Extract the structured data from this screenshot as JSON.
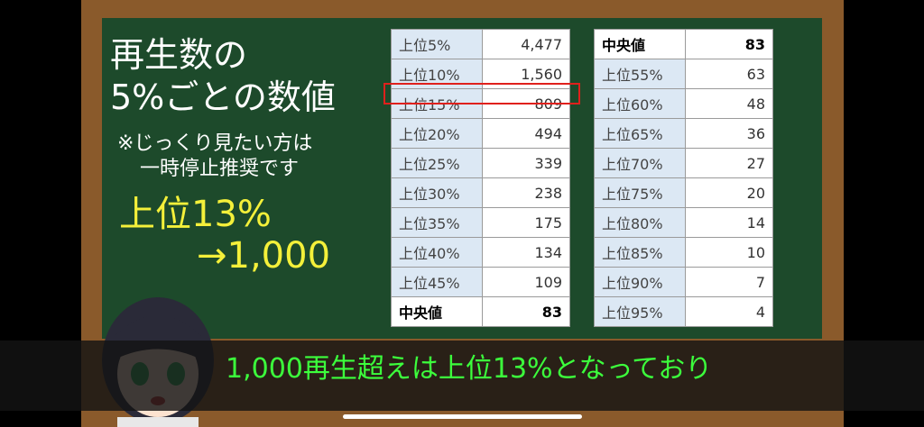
{
  "heading": [
    "再生数の",
    "5%ごとの数値"
  ],
  "note": [
    "※じっくり見たい方は",
    "一時停止推奨です"
  ],
  "highlight": [
    "上位13%",
    "→1,000"
  ],
  "table_left": {
    "rows": [
      [
        "上位5%",
        "4,477"
      ],
      [
        "上位10%",
        "1,560"
      ],
      [
        "上位15%",
        "809"
      ],
      [
        "上位20%",
        "494"
      ],
      [
        "上位25%",
        "339"
      ],
      [
        "上位30%",
        "238"
      ],
      [
        "上位35%",
        "175"
      ],
      [
        "上位40%",
        "134"
      ],
      [
        "上位45%",
        "109"
      ],
      [
        "中央値",
        "83"
      ]
    ]
  },
  "table_right": {
    "rows": [
      [
        "中央値",
        "83"
      ],
      [
        "上位55%",
        "63"
      ],
      [
        "上位60%",
        "48"
      ],
      [
        "上位65%",
        "36"
      ],
      [
        "上位70%",
        "27"
      ],
      [
        "上位75%",
        "20"
      ],
      [
        "上位80%",
        "14"
      ],
      [
        "上位85%",
        "10"
      ],
      [
        "上位90%",
        "7"
      ],
      [
        "上位95%",
        "4"
      ]
    ]
  },
  "subtitle": "1,000再生超えは上位13%となっており"
}
